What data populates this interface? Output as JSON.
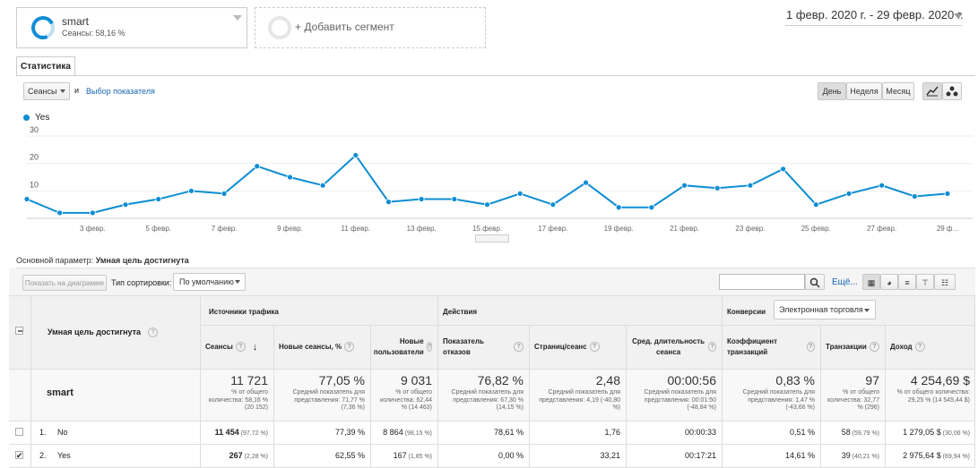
{
  "segments": {
    "active": {
      "name": "smart",
      "sub": "Сеансы: 58,16 %"
    },
    "add_label": "+ Добавить сегмент"
  },
  "date_range": "1 февр. 2020 г. - 29 февр. 2020 г.",
  "tab": "Статистика",
  "chart_controls": {
    "metric_select": "Сеансы",
    "and": "и",
    "pick_metric": "Выбор показателя",
    "day": "День",
    "week": "Неделя",
    "month": "Месяц"
  },
  "colors": {
    "series": "#0c8dd3",
    "link": "#1566b3"
  },
  "chart_data": {
    "type": "line",
    "legend": [
      "Yes"
    ],
    "yticks": [
      "30",
      "20",
      "10"
    ],
    "ylim": [
      0,
      30
    ],
    "xticks": [
      "3 февр.",
      "5 февр.",
      "7 февр.",
      "9 февр.",
      "11 февр.",
      "13 февр.",
      "15 февр.",
      "17 февр.",
      "19 февр.",
      "21 февр.",
      "23 февр.",
      "25 февр.",
      "27 февр.",
      "29 ф..."
    ],
    "series": [
      {
        "name": "Yes",
        "values": [
          7,
          2,
          2,
          5,
          7,
          10,
          9,
          19,
          15,
          12,
          23,
          6,
          7,
          7,
          5,
          9,
          5,
          13,
          4,
          4,
          12,
          11,
          12,
          18,
          5,
          9,
          12,
          8,
          9
        ]
      }
    ]
  },
  "primary_dim": {
    "label": "Основной параметр:",
    "value": "Умная цель достигнута"
  },
  "toolbar": {
    "plot_rows": "Показать на диаграмме",
    "sort_label": "Тип сортировки:",
    "sort_value": "По умолчанию",
    "search_more": "Ещё..."
  },
  "table": {
    "dim_header": "Умная цель достигнута",
    "groups": {
      "traffic": "Источники трафика",
      "actions": "Действия",
      "conversions": "Конверсии",
      "conv_select": "Электронная торговля"
    },
    "cols": [
      "Сеансы",
      "Новые сеансы, %",
      "Новые пользователи",
      "Показатель отказов",
      "Страниц/сеанс",
      "Сред. длительность сеанса",
      "Коэффициент транзакций",
      "Транзакции",
      "Доход"
    ],
    "total_label": "smart",
    "totals": [
      {
        "v": "11 721",
        "s": "% от общего количества: 58,16 % (20 152)"
      },
      {
        "v": "77,05 %",
        "s": "Средний показатель для представления: 71,77 % (7,36 %)"
      },
      {
        "v": "9 031",
        "s": "% от общего количества: 62,44 % (14 463)"
      },
      {
        "v": "76,82 %",
        "s": "Средний показатель для представления: 67,30 % (14,15 %)"
      },
      {
        "v": "2,48",
        "s": "Средний показатель для представления: 4,19 (-40,80 %)"
      },
      {
        "v": "00:00:56",
        "s": "Средний показатель для представления: 00:01:50 (-48,84 %)"
      },
      {
        "v": "0,83 %",
        "s": "Средний показатель для представления: 1,47 % (-43,66 %)"
      },
      {
        "v": "97",
        "s": "% от общего количества: 32,77 % (296)"
      },
      {
        "v": "4 254,69 $",
        "s": "% от общего количества: 29,25 % (14 545,44 $)"
      }
    ],
    "rows": [
      {
        "n": "1.",
        "name": "No",
        "c": [
          "11 454",
          "77,39 %",
          "8 864",
          "78,61 %",
          "1,76",
          "00:00:33",
          "0,51 %",
          "58",
          "1 279,05 $"
        ],
        "p": [
          "(97,72 %)",
          "",
          "(98,15 %)",
          "",
          "",
          "",
          "",
          "(59,79 %)",
          "(30,06 %)"
        ]
      },
      {
        "n": "2.",
        "name": "Yes",
        "c": [
          "267",
          "62,55 %",
          "167",
          "0,00 %",
          "33,21",
          "00:17:21",
          "14,61 %",
          "39",
          "2 975,64 $"
        ],
        "p": [
          "(2,28 %)",
          "",
          "(1,85 %)",
          "",
          "",
          "",
          "",
          "(40,21 %)",
          "(69,94 %)"
        ]
      }
    ]
  }
}
